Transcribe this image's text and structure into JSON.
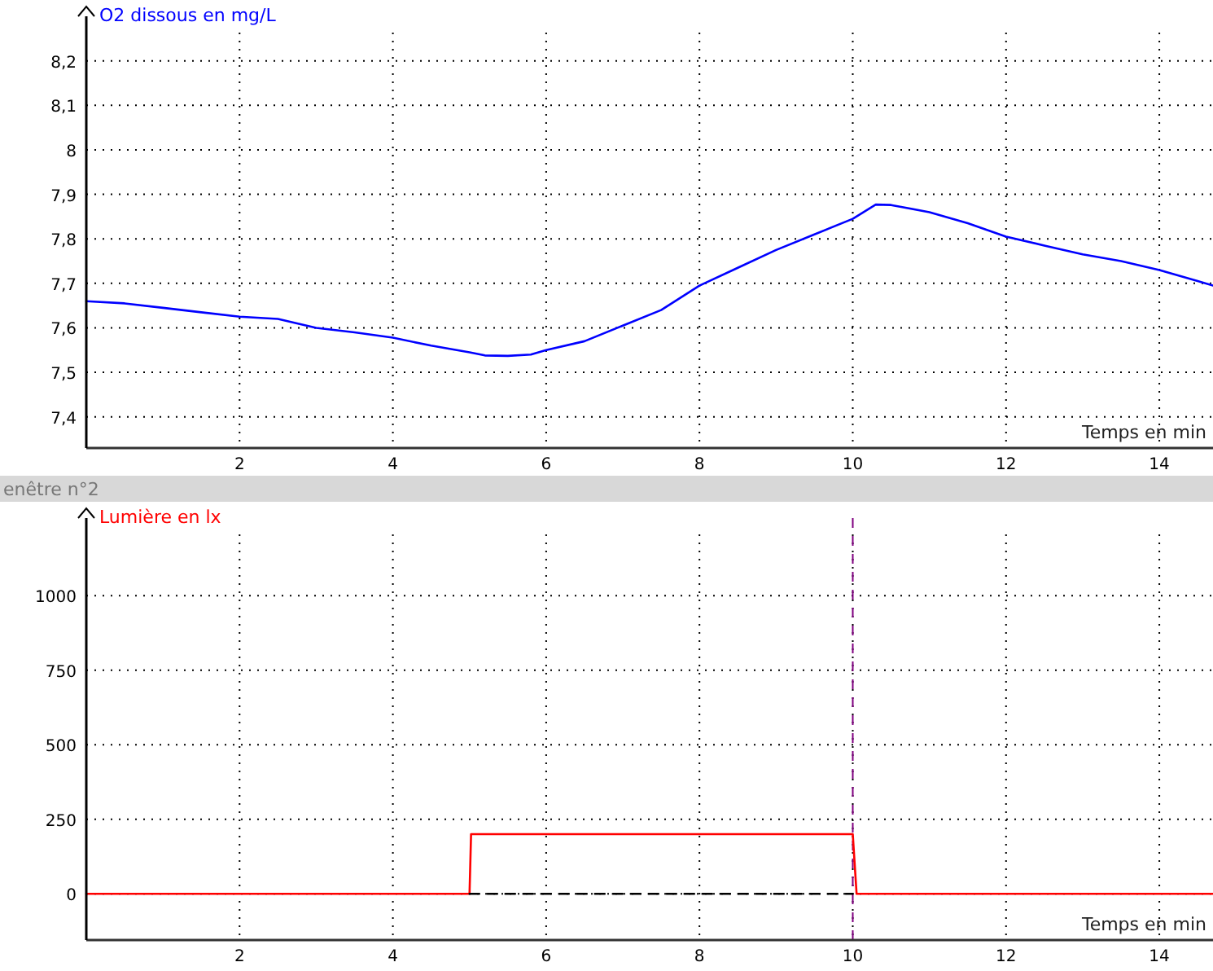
{
  "chart_data": [
    {
      "type": "line",
      "ylabel": "O2 dissous en mg/L",
      "xlabel": "Temps en min",
      "xlim": [
        0,
        14.7
      ],
      "ylim": [
        7.33,
        8.3
      ],
      "xticks": [
        2,
        4,
        6,
        8,
        10,
        12,
        14
      ],
      "yticks": [
        {
          "value": 7.4,
          "label": "7,4"
        },
        {
          "value": 7.5,
          "label": "7,5"
        },
        {
          "value": 7.6,
          "label": "7,6"
        },
        {
          "value": 7.7,
          "label": "7,7"
        },
        {
          "value": 7.8,
          "label": "7,8"
        },
        {
          "value": 7.9,
          "label": "7,9"
        },
        {
          "value": 8,
          "label": "8"
        },
        {
          "value": 8.1,
          "label": "8,1"
        },
        {
          "value": 8.2,
          "label": "8,2"
        }
      ],
      "grid": true,
      "series": [
        {
          "color": "#0000ff",
          "x": [
            0,
            0.5,
            1,
            1.5,
            2,
            2.5,
            3,
            3.5,
            4,
            4.5,
            5,
            5.2,
            5.5,
            5.8,
            6,
            6.5,
            7,
            7.5,
            8,
            8.5,
            9,
            9.5,
            10,
            10.3,
            10.5,
            11,
            11.5,
            12,
            12.5,
            13,
            13.5,
            14,
            14.5,
            14.7
          ],
          "values": [
            7.66,
            7.655,
            7.645,
            7.635,
            7.625,
            7.62,
            7.6,
            7.59,
            7.578,
            7.56,
            7.545,
            7.538,
            7.537,
            7.54,
            7.55,
            7.57,
            7.605,
            7.64,
            7.695,
            7.735,
            7.775,
            7.81,
            7.845,
            7.877,
            7.876,
            7.86,
            7.835,
            7.805,
            7.785,
            7.765,
            7.75,
            7.73,
            7.705,
            7.695
          ]
        }
      ]
    },
    {
      "type": "line",
      "title": "enêtre n°2",
      "ylabel": "Lumière en lx",
      "xlabel": "Temps en min",
      "xlim": [
        0,
        14.7
      ],
      "ylim": [
        -155,
        1260
      ],
      "xticks": [
        2,
        4,
        6,
        8,
        10,
        12,
        14
      ],
      "yticks": [
        0,
        250,
        500,
        750,
        1000
      ],
      "grid": true,
      "series": [
        {
          "color": "#ff0000",
          "x": [
            0,
            5,
            5.02,
            10,
            10.05,
            14.7
          ],
          "values": [
            0,
            0,
            200,
            200,
            0,
            0
          ]
        },
        {
          "color": "#000000",
          "line_style": "dashed",
          "x": [
            5,
            10
          ],
          "values": [
            0,
            0
          ]
        }
      ],
      "ref_lines": [
        {
          "axis": "x",
          "value": 10,
          "color": "#800080",
          "line_style": "dashed"
        }
      ]
    }
  ]
}
